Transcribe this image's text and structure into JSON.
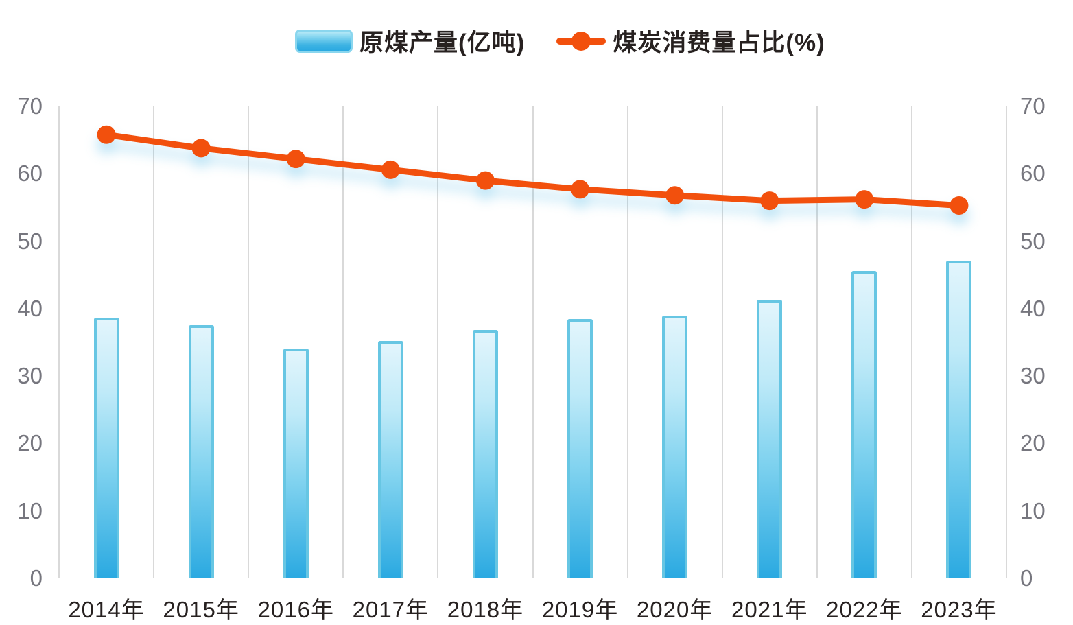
{
  "legend": [
    {
      "label": "原煤产量(亿吨)",
      "type": "bar"
    },
    {
      "label": "煤炭消费量占比(%)",
      "type": "line"
    }
  ],
  "colors": {
    "bar_border": "#67c6e3",
    "bar_fill_top": "#e2f5fc",
    "bar_fill_bottom": "#2aa9e1",
    "line": "#f2500d",
    "gridline": "#d9d9d9",
    "y_tick_label": "#76767e",
    "x_tick_label": "#272120"
  },
  "chart_data": {
    "type": "combo",
    "categories": [
      "2014年",
      "2015年",
      "2016年",
      "2017年",
      "2018年",
      "2019年",
      "2020年",
      "2021年",
      "2022年",
      "2023年"
    ],
    "series": [
      {
        "name": "原煤产量(亿吨)",
        "type": "bar",
        "axis": "left",
        "values": [
          38.7,
          37.5,
          34.1,
          35.2,
          36.8,
          38.5,
          39.0,
          41.3,
          45.6,
          47.1
        ]
      },
      {
        "name": "煤炭消费量占比(%)",
        "type": "line",
        "axis": "right",
        "values": [
          65.8,
          63.8,
          62.2,
          60.6,
          59.0,
          57.7,
          56.8,
          56.0,
          56.2,
          55.3
        ]
      }
    ],
    "y_axis": {
      "min": 0,
      "max": 70,
      "ticks": [
        0,
        10,
        20,
        30,
        40,
        50,
        60,
        70
      ],
      "dual": true
    },
    "grid": "vertical-only",
    "legend_position": "top"
  }
}
